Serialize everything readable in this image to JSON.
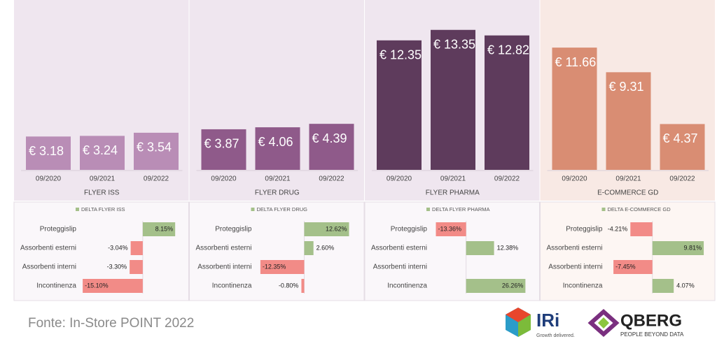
{
  "chart_data": [
    {
      "type": "bar",
      "xlabel": "FLYER ISS",
      "categories": [
        "09/2020",
        "09/2021",
        "09/2022"
      ],
      "values": [
        3.18,
        3.24,
        3.54
      ],
      "value_labels": [
        "€ 3.18",
        "€ 3.24",
        "€ 3.54"
      ],
      "color": "#b98db6",
      "ylim": [
        0,
        14
      ]
    },
    {
      "type": "bar",
      "xlabel": "FLYER DRUG",
      "categories": [
        "09/2020",
        "09/2021",
        "09/2022"
      ],
      "values": [
        3.87,
        4.06,
        4.39
      ],
      "value_labels": [
        "€ 3.87",
        "€ 4.06",
        "€ 4.39"
      ],
      "color": "#8f5a8a",
      "ylim": [
        0,
        14
      ]
    },
    {
      "type": "bar",
      "xlabel": "FLYER PHARMA",
      "categories": [
        "09/2020",
        "09/2021",
        "09/2022"
      ],
      "values": [
        12.35,
        13.35,
        12.82
      ],
      "value_labels": [
        "€ 12.35",
        "€ 13.35",
        "€ 12.82"
      ],
      "color": "#5e3b5c",
      "ylim": [
        0,
        14
      ]
    },
    {
      "type": "bar",
      "xlabel": "E-COMMERCE GD",
      "categories": [
        "09/2020",
        "09/2021",
        "09/2022"
      ],
      "values": [
        11.66,
        9.31,
        4.37
      ],
      "value_labels": [
        "€ 11.66",
        "€ 9.31",
        "€ 4.37"
      ],
      "color": "#d98d73",
      "ylim": [
        0,
        14
      ]
    },
    {
      "type": "hbar",
      "title": "DELTA FLYER ISS",
      "categories": [
        "Proteggislip",
        "Assorbenti esterni",
        "Assorbenti interni",
        "Incontinenza"
      ],
      "values": [
        8.15,
        -3.04,
        -3.3,
        -15.1
      ],
      "value_labels": [
        "8.15%",
        "-3.04%",
        "-3.30%",
        "-15.10%"
      ],
      "colors": {
        "positive": "#a4c08a",
        "negative": "#f28b87"
      },
      "xlim": [
        -16,
        9
      ]
    },
    {
      "type": "hbar",
      "title": "DELTA FLYER DRUG",
      "categories": [
        "Proteggislip",
        "Assorbenti esterni",
        "Assorbenti interni",
        "Incontinenza"
      ],
      "values": [
        12.62,
        2.6,
        -12.35,
        -0.8
      ],
      "value_labels": [
        "12.62%",
        "2.60%",
        "-12.35%",
        "-0.80%"
      ],
      "colors": {
        "positive": "#a4c08a",
        "negative": "#f28b87"
      },
      "xlim": [
        -14,
        14
      ]
    },
    {
      "type": "hbar",
      "title": "DELTA FLYER PHARMA",
      "categories": [
        "Proteggislip",
        "Assorbenti esterni",
        "Assorbenti interni",
        "Incontinenza"
      ],
      "values": [
        -13.36,
        12.38,
        null,
        26.26
      ],
      "value_labels": [
        "-13.36%",
        "12.38%",
        null,
        "26.26%"
      ],
      "colors": {
        "positive": "#a4c08a",
        "negative": "#f28b87"
      },
      "xlim": [
        -16,
        28
      ]
    },
    {
      "type": "hbar",
      "title": "DELTA E-COMMERCE GD",
      "categories": [
        "Proteggislip",
        "Assorbenti esterni",
        "Assorbenti interni",
        "Incontinenza"
      ],
      "values": [
        -4.21,
        9.81,
        -7.45,
        4.07
      ],
      "value_labels": [
        "-4.21%",
        "9.81%",
        "-7.45%",
        "4.07%"
      ],
      "colors": {
        "positive": "#a4c08a",
        "negative": "#f28b87"
      },
      "xlim": [
        -9,
        10
      ]
    }
  ],
  "footer": {
    "source": "Fonte: In-Store POINT 2022",
    "logo1": "IRi",
    "logo1_tagline": "Growth delivered.",
    "logo2": "QBERG",
    "logo2_tagline": "PEOPLE BEYOND DATA"
  }
}
